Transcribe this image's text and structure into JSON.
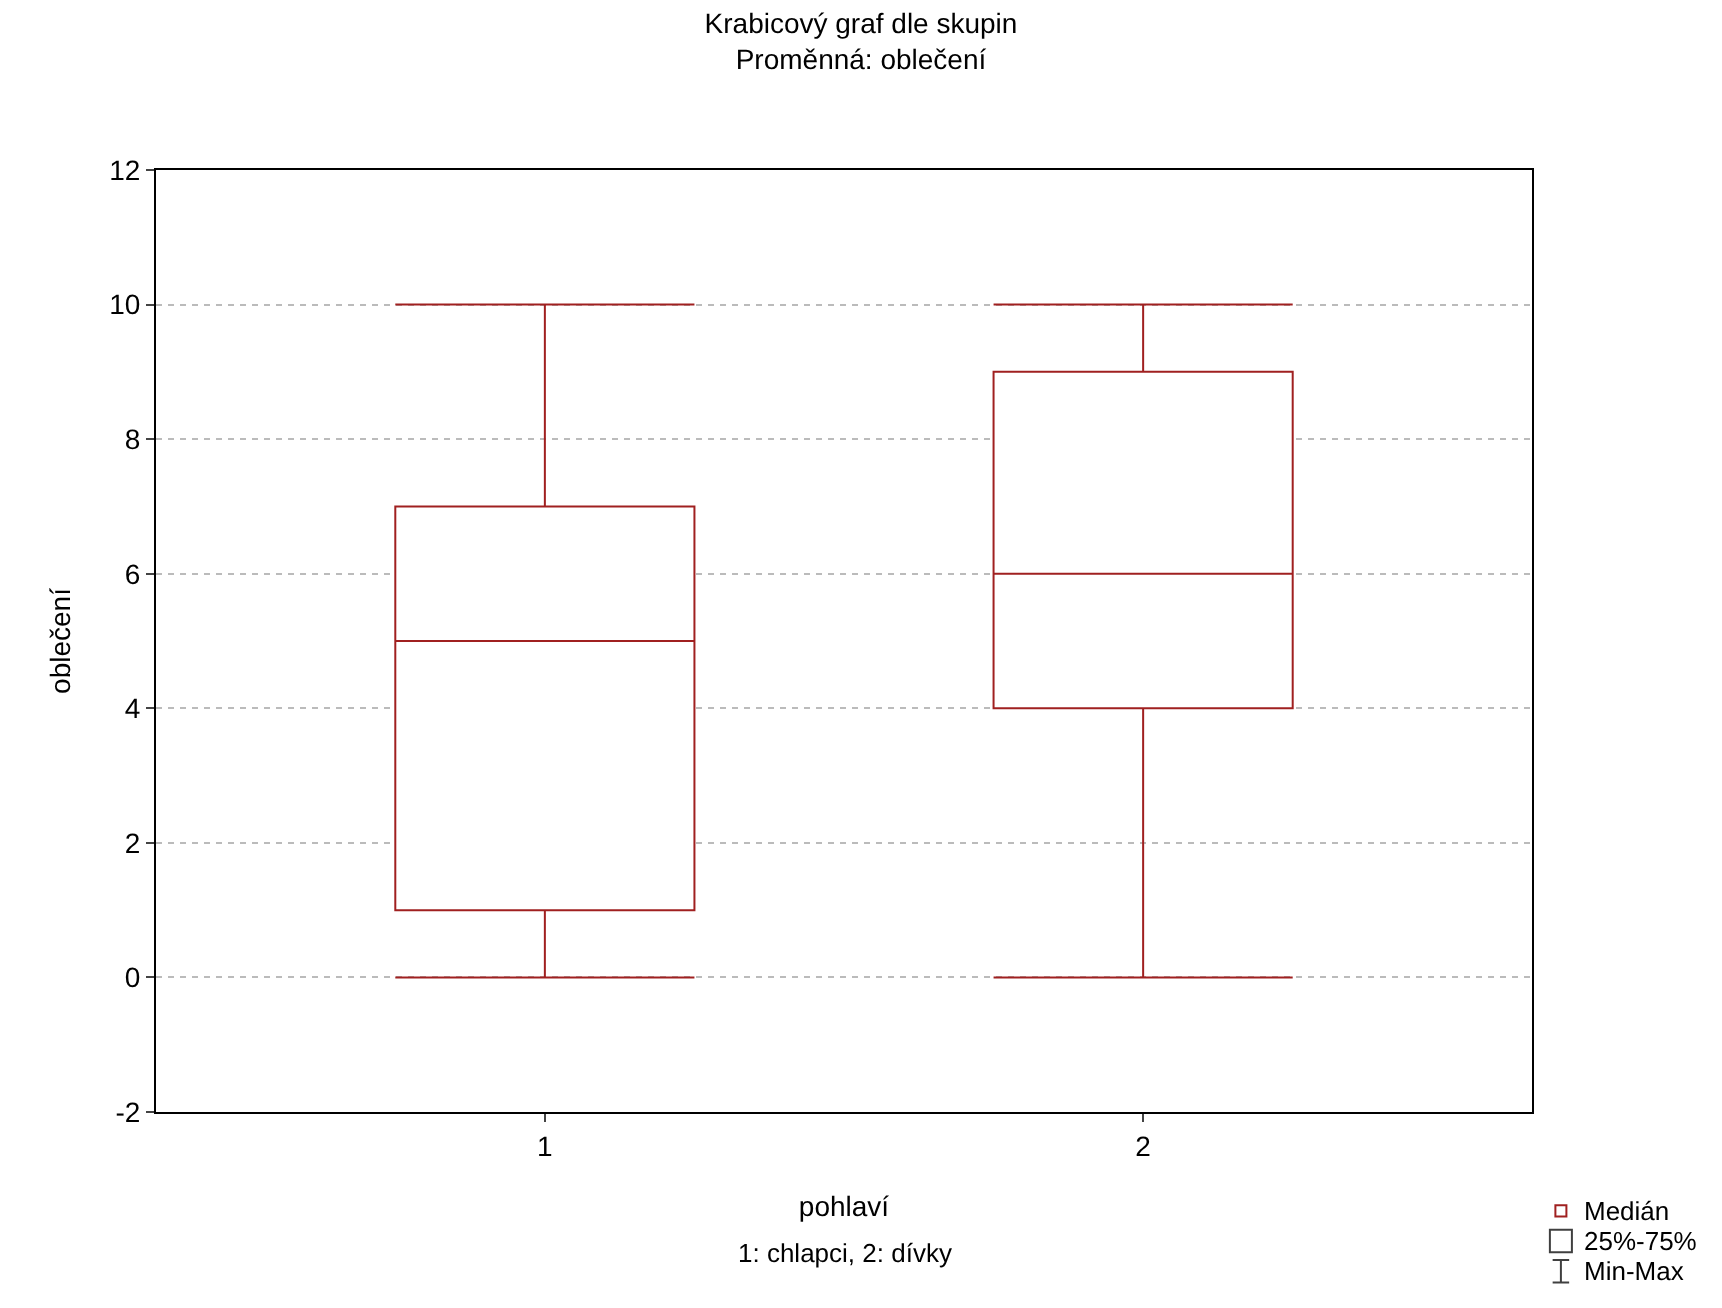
{
  "chart_data": {
    "type": "box",
    "title": "Krabicový graf dle skupin",
    "subtitle": "Proměnná: oblečení",
    "xlabel": "pohlaví",
    "ylabel": "oblečení",
    "categories": [
      "1",
      "2"
    ],
    "boxes": [
      {
        "low": 0,
        "q1": 1,
        "median": 5,
        "q3": 7,
        "high": 10
      },
      {
        "low": 0,
        "q1": 4,
        "median": 6,
        "q3": 9,
        "high": 10
      }
    ],
    "color": "#a02020",
    "ylim": [
      -2,
      12
    ],
    "yticks": [
      -2,
      0,
      2,
      4,
      6,
      8,
      10,
      12
    ],
    "grid": "y",
    "annotations": [
      "1: chlapci, 2: dívky",
      "Medián",
      "25%-75%",
      "Min-Max"
    ]
  }
}
